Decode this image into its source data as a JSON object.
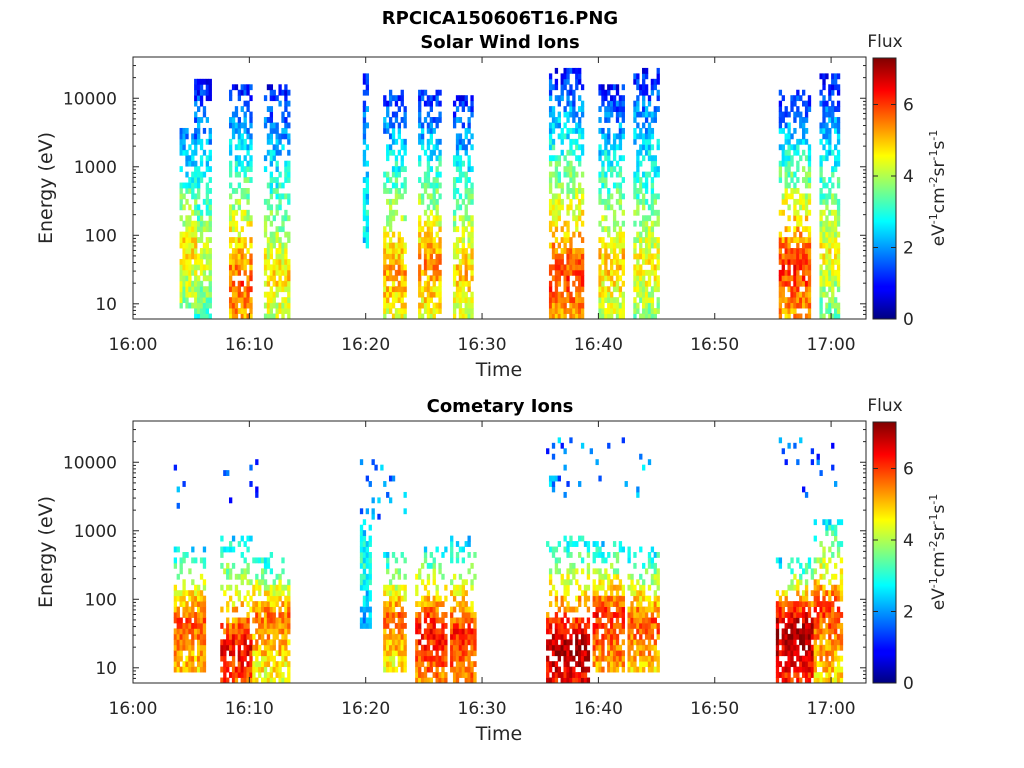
{
  "figure_title": "RPCICA150606T16.PNG",
  "chart_data": [
    {
      "type": "heatmap",
      "title": "Solar Wind Ions",
      "xlabel": "Time",
      "ylabel": "Energy (eV)",
      "x_ticks": [
        "16:00",
        "16:10",
        "16:20",
        "16:30",
        "16:40",
        "16:50",
        "17:00"
      ],
      "xlim_minutes": [
        0,
        63
      ],
      "y_scale": "log",
      "y_ticks": [
        10,
        100,
        1000,
        10000
      ],
      "ylim": [
        6,
        40000
      ],
      "colorbar": {
        "label": "Flux",
        "unit": "eV-1cm-2sr-1s-1",
        "range": [
          0,
          7.3
        ],
        "ticks": [
          0,
          2,
          4,
          6
        ],
        "colormap": "jet"
      },
      "bursts": [
        {
          "t_start": 4.0,
          "t_end": 5.6,
          "e_min": 8,
          "e_max": 4000,
          "peak_energy": 70,
          "peak_flux": 4.8,
          "hi_flux": 1.5
        },
        {
          "t_start": 5.2,
          "t_end": 6.8,
          "e_min": 6,
          "e_max": 20000,
          "peak_energy": 40,
          "peak_flux": 4.2,
          "hi_flux": 1.0
        },
        {
          "t_start": 8.2,
          "t_end": 10.2,
          "e_min": 6,
          "e_max": 16000,
          "peak_energy": 20,
          "peak_flux": 5.8,
          "hi_flux": 1.0
        },
        {
          "t_start": 11.2,
          "t_end": 13.5,
          "e_min": 6,
          "e_max": 15000,
          "peak_energy": 25,
          "peak_flux": 4.8,
          "hi_flux": 1.0
        },
        {
          "t_start": 19.8,
          "t_end": 20.3,
          "e_min": 60,
          "e_max": 25000,
          "peak_energy": 150,
          "peak_flux": 2.8,
          "hi_flux": 1.2
        },
        {
          "t_start": 21.5,
          "t_end": 23.6,
          "e_min": 6,
          "e_max": 14000,
          "peak_energy": 30,
          "peak_flux": 5.2,
          "hi_flux": 1.1
        },
        {
          "t_start": 24.5,
          "t_end": 26.5,
          "e_min": 6,
          "e_max": 14000,
          "peak_energy": 40,
          "peak_flux": 5.4,
          "hi_flux": 1.0
        },
        {
          "t_start": 27.5,
          "t_end": 29.2,
          "e_min": 6,
          "e_max": 12000,
          "peak_energy": 30,
          "peak_flux": 5.0,
          "hi_flux": 1.0
        },
        {
          "t_start": 35.8,
          "t_end": 38.8,
          "e_min": 6,
          "e_max": 28000,
          "peak_energy": 25,
          "peak_flux": 6.0,
          "hi_flux": 1.0
        },
        {
          "t_start": 40.0,
          "t_end": 42.2,
          "e_min": 6,
          "e_max": 16000,
          "peak_energy": 40,
          "peak_flux": 5.0,
          "hi_flux": 1.0
        },
        {
          "t_start": 43.0,
          "t_end": 45.2,
          "e_min": 6,
          "e_max": 30000,
          "peak_energy": 35,
          "peak_flux": 4.6,
          "hi_flux": 1.0
        },
        {
          "t_start": 55.5,
          "t_end": 58.2,
          "e_min": 6,
          "e_max": 14000,
          "peak_energy": 35,
          "peak_flux": 6.1,
          "hi_flux": 1.0
        },
        {
          "t_start": 59.0,
          "t_end": 60.8,
          "e_min": 6,
          "e_max": 25000,
          "peak_energy": 60,
          "peak_flux": 4.6,
          "hi_flux": 1.0
        }
      ]
    },
    {
      "type": "heatmap",
      "title": "Cometary Ions",
      "xlabel": "Time",
      "ylabel": "Energy (eV)",
      "x_ticks": [
        "16:00",
        "16:10",
        "16:20",
        "16:30",
        "16:40",
        "16:50",
        "17:00"
      ],
      "xlim_minutes": [
        0,
        63
      ],
      "y_scale": "log",
      "y_ticks": [
        10,
        100,
        1000,
        10000
      ],
      "ylim": [
        6,
        40000
      ],
      "colorbar": {
        "label": "Flux",
        "unit": "eV-1cm-2sr-1s-1",
        "range": [
          0,
          7.3
        ],
        "ticks": [
          0,
          2,
          4,
          6
        ],
        "colormap": "jet"
      },
      "bursts": [
        {
          "t_start": 3.6,
          "t_end": 6.3,
          "e_min": 8,
          "e_max": 600,
          "peak_energy": 50,
          "peak_flux": 5.8,
          "hi_flux": 2.5
        },
        {
          "t_start": 7.5,
          "t_end": 10.2,
          "e_min": 6,
          "e_max": 800,
          "peak_energy": 20,
          "peak_flux": 6.4,
          "hi_flux": 2.5
        },
        {
          "t_start": 10.3,
          "t_end": 13.5,
          "e_min": 6,
          "e_max": 500,
          "peak_energy": 60,
          "peak_flux": 5.6,
          "hi_flux": 2.5
        },
        {
          "t_start": 19.5,
          "t_end": 20.5,
          "e_min": 40,
          "e_max": 2000,
          "peak_energy": 300,
          "peak_flux": 3.0,
          "hi_flux": 2.0
        },
        {
          "t_start": 21.5,
          "t_end": 23.6,
          "e_min": 8,
          "e_max": 500,
          "peak_energy": 60,
          "peak_flux": 5.6,
          "hi_flux": 2.5
        },
        {
          "t_start": 24.2,
          "t_end": 27.0,
          "e_min": 6,
          "e_max": 600,
          "peak_energy": 40,
          "peak_flux": 6.4,
          "hi_flux": 2.5
        },
        {
          "t_start": 27.2,
          "t_end": 29.6,
          "e_min": 6,
          "e_max": 800,
          "peak_energy": 30,
          "peak_flux": 6.2,
          "hi_flux": 2.5
        },
        {
          "t_start": 35.6,
          "t_end": 39.2,
          "e_min": 6,
          "e_max": 900,
          "peak_energy": 20,
          "peak_flux": 7.0,
          "hi_flux": 2.5
        },
        {
          "t_start": 39.4,
          "t_end": 42.2,
          "e_min": 8,
          "e_max": 700,
          "peak_energy": 60,
          "peak_flux": 6.2,
          "hi_flux": 2.5
        },
        {
          "t_start": 42.5,
          "t_end": 45.3,
          "e_min": 8,
          "e_max": 600,
          "peak_energy": 50,
          "peak_flux": 5.8,
          "hi_flux": 2.5
        },
        {
          "t_start": 55.2,
          "t_end": 58.4,
          "e_min": 6,
          "e_max": 400,
          "peak_energy": 40,
          "peak_flux": 7.1,
          "hi_flux": 2.5
        },
        {
          "t_start": 58.6,
          "t_end": 61.0,
          "e_min": 6,
          "e_max": 1500,
          "peak_energy": 70,
          "peak_flux": 6.0,
          "hi_flux": 2.5
        }
      ],
      "sparse_high_energy": [
        {
          "t_start": 3.6,
          "t_end": 5.0,
          "e_min": 2000,
          "e_max": 11000
        },
        {
          "t_start": 7.5,
          "t_end": 11.0,
          "e_min": 2500,
          "e_max": 13000
        },
        {
          "t_start": 19.5,
          "t_end": 23.5,
          "e_min": 1500,
          "e_max": 13000
        },
        {
          "t_start": 35.6,
          "t_end": 44.5,
          "e_min": 3000,
          "e_max": 22000
        },
        {
          "t_start": 55.5,
          "t_end": 60.5,
          "e_min": 3000,
          "e_max": 22000
        }
      ]
    }
  ]
}
